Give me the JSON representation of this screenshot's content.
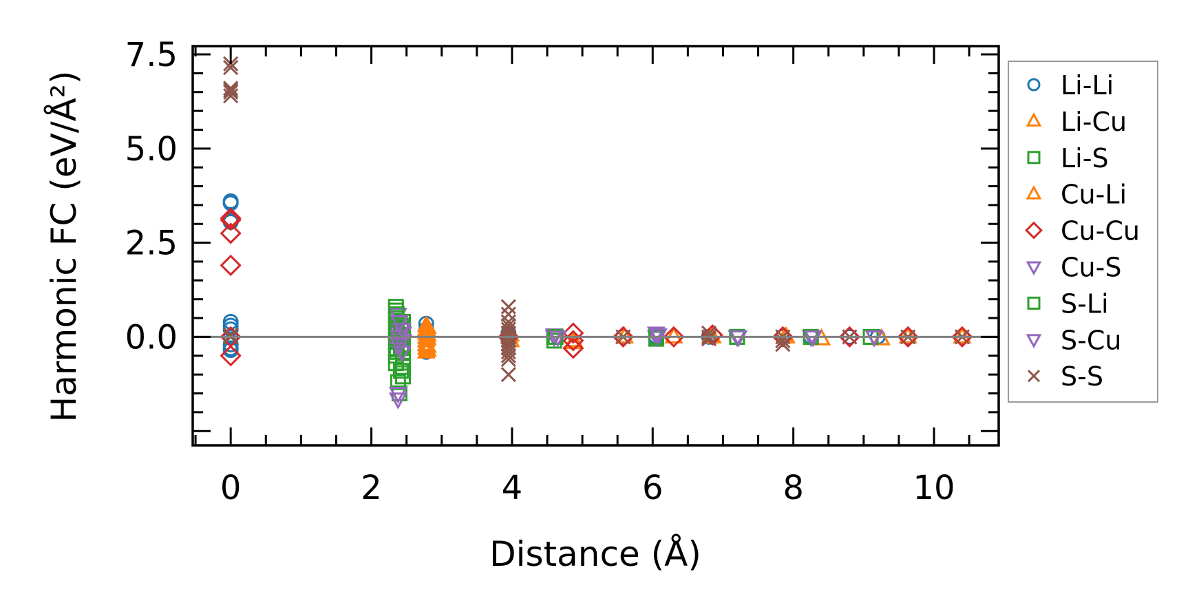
{
  "chart_data": {
    "type": "scatter",
    "title": "",
    "xlabel": "Distance (Å)",
    "ylabel": "Harmonic FC (eV/Å²)",
    "xlim": [
      -0.54,
      10.92
    ],
    "ylim": [
      -2.88,
      7.72
    ],
    "xticks": [
      0,
      2,
      4,
      6,
      8,
      10
    ],
    "xtick_labels": [
      "0",
      "2",
      "4",
      "6",
      "8",
      "10"
    ],
    "yticks": [
      0,
      2.5,
      5,
      7.5
    ],
    "ytick_labels": [
      "0.0",
      "2.5",
      "5.0",
      "7.5"
    ],
    "grid": false,
    "reference_line_y": 0,
    "legend_position": "outside-right",
    "series": [
      {
        "name": "Li-Li",
        "marker": "circle",
        "color": "#1f77b4",
        "x": [
          0,
          0,
          0,
          0,
          0,
          0,
          0,
          0,
          0,
          0,
          0,
          2.78,
          2.78,
          2.78,
          2.78,
          2.78,
          3.95,
          3.95,
          3.95,
          5.58,
          6.05,
          6.8,
          7.85,
          8.25,
          8.8,
          9.2,
          9.63,
          10.4
        ],
        "y": [
          3.6,
          3.55,
          3.1,
          3.05,
          0.4,
          0.3,
          0.2,
          0,
          -0.2,
          -0.3,
          -0.35,
          0.35,
          0.2,
          0,
          -0.2,
          -0.4,
          0.1,
          0,
          -0.1,
          0,
          0,
          0,
          0,
          0,
          0,
          0,
          0,
          0
        ]
      },
      {
        "name": "Li-Cu",
        "marker": "triangle-up",
        "color": "#ff7f0e",
        "x": [
          2.78,
          2.78,
          2.78,
          2.78,
          2.78,
          2.78,
          2.78,
          2.78,
          3.98,
          3.98,
          4.87,
          5.6,
          6.3,
          6.85,
          7.9,
          8.4,
          9.25,
          9.63,
          10.4
        ],
        "y": [
          0.3,
          0.2,
          0.1,
          0,
          -0.1,
          -0.2,
          -0.3,
          -0.4,
          -0.1,
          0.05,
          -0.15,
          0,
          0,
          0,
          0,
          -0.05,
          -0.05,
          0,
          0
        ]
      },
      {
        "name": "Li-S",
        "marker": "square",
        "color": "#2ca02c",
        "x": [
          2.35,
          2.35,
          2.35,
          2.35,
          2.35,
          2.35,
          2.35,
          2.35,
          2.35,
          2.38,
          2.4,
          2.45,
          2.45,
          2.45,
          2.45,
          2.45,
          2.45,
          2.45,
          2.45,
          4.6,
          4.6,
          6.05,
          7.2,
          8.25,
          9.1
        ],
        "y": [
          0.8,
          0.7,
          0.5,
          0.3,
          0.1,
          -0.1,
          -0.3,
          -0.5,
          -0.7,
          -1.2,
          -1.5,
          0.4,
          0.2,
          0,
          -0.2,
          -0.4,
          -0.6,
          -0.8,
          -1.05,
          0,
          -0.1,
          -0.05,
          0,
          0,
          0
        ]
      },
      {
        "name": "Cu-Li",
        "marker": "triangle-up",
        "color": "#ff7f0e",
        "x": [
          2.8,
          2.8,
          2.8,
          2.8,
          2.8,
          2.8,
          3.96,
          4.88,
          5.6,
          6.3,
          6.82,
          7.88,
          8.4,
          9.25,
          9.63,
          10.4
        ],
        "y": [
          0.25,
          0.15,
          0.05,
          -0.05,
          -0.25,
          -0.35,
          0,
          -0.1,
          0,
          0,
          0,
          0,
          -0.05,
          -0.05,
          0,
          0
        ]
      },
      {
        "name": "Cu-Cu",
        "marker": "diamond",
        "color": "#d62728",
        "x": [
          0,
          0,
          0,
          0,
          0,
          0,
          3.95,
          4.87,
          4.87,
          4.87,
          5.58,
          6.3,
          6.85,
          7.85,
          8.8,
          9.63,
          10.4
        ],
        "y": [
          3.15,
          3.1,
          2.75,
          1.9,
          0,
          -0.5,
          0,
          0.1,
          -0.1,
          -0.3,
          0,
          0,
          0.05,
          0,
          0,
          0,
          0
        ]
      },
      {
        "name": "Cu-S",
        "marker": "triangle-down",
        "color": "#9467bd",
        "x": [
          2.38,
          2.38,
          2.38,
          2.38,
          2.38,
          2.38,
          2.38,
          2.45,
          2.45,
          4.6,
          4.6,
          6.05,
          6.05,
          7.2,
          8.25,
          9.15
        ],
        "y": [
          0.6,
          0.3,
          0.1,
          -0.1,
          -0.3,
          -1.5,
          -1.65,
          0.1,
          -0.1,
          0.05,
          0,
          0.1,
          0,
          0,
          0,
          0
        ]
      },
      {
        "name": "S-Li",
        "marker": "square",
        "color": "#2ca02c",
        "x": [
          2.36,
          2.36,
          2.36,
          2.42,
          2.42,
          2.42,
          4.62,
          6.05,
          7.2,
          8.25,
          9.1
        ],
        "y": [
          0.6,
          0.2,
          -0.4,
          0.3,
          -0.3,
          -0.9,
          0,
          0,
          0,
          0,
          0
        ]
      },
      {
        "name": "S-Cu",
        "marker": "triangle-down",
        "color": "#9467bd",
        "x": [
          2.4,
          2.4,
          2.4,
          2.44,
          2.44,
          4.65,
          6.08,
          7.22,
          8.28,
          9.15
        ],
        "y": [
          0.4,
          0,
          -0.2,
          0.2,
          -0.4,
          0,
          0.05,
          0,
          0,
          0
        ]
      },
      {
        "name": "S-S",
        "marker": "x",
        "color": "#8c564b",
        "x": [
          0,
          0,
          0,
          0,
          0,
          0,
          0,
          0,
          3.95,
          3.95,
          3.95,
          3.95,
          3.95,
          3.95,
          3.95,
          3.95,
          3.95,
          3.95,
          3.95,
          3.95,
          3.95,
          3.95,
          5.58,
          6.8,
          6.8,
          6.8,
          7.85,
          7.85,
          7.85,
          8.8,
          9.63,
          10.4
        ],
        "y": [
          7.25,
          7.15,
          6.6,
          6.55,
          6.5,
          6.4,
          0,
          0.05,
          0.8,
          0.6,
          0.4,
          0.3,
          0.2,
          0.1,
          0,
          -0.1,
          -0.2,
          -0.3,
          -0.4,
          -0.5,
          -0.6,
          -1.0,
          0,
          0.1,
          0,
          -0.05,
          0,
          -0.1,
          -0.2,
          0,
          0,
          0
        ]
      }
    ]
  }
}
